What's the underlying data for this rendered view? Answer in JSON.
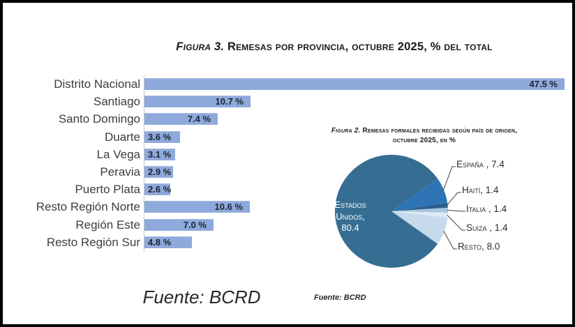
{
  "figure3": {
    "title_italic": "Figura 3.",
    "title_rest": " Remesas por provincia, octubre 2025, % del total",
    "source": "Fuente: BCRD"
  },
  "figure2": {
    "title_italic": "Figura 2.",
    "title_rest": " Remesas formales recibidas según país de origen,",
    "title_line2": "octubre 2025, en %",
    "source": "Fuente: BCRD"
  },
  "chart_data": [
    {
      "type": "bar",
      "orientation": "horizontal",
      "title": "Figura 3. Remesas por provincia, octubre 2025, % del total",
      "categories": [
        "Distrito Nacional",
        "Santiago",
        "Santo Domingo",
        "Duarte",
        "La Vega",
        "Peravia",
        "Puerto Plata",
        "Resto Región Norte",
        "Región Este",
        "Resto Región Sur"
      ],
      "values": [
        47.5,
        10.7,
        7.4,
        3.6,
        3.1,
        2.9,
        2.6,
        10.6,
        7.0,
        4.8
      ],
      "value_labels": [
        "47.5 %",
        "10.7 %",
        "7.4 %",
        "3.6 %",
        "3.1 %",
        "2.9 %",
        "2.6 %",
        "10.6 %",
        "7.0 %",
        "4.8 %"
      ],
      "unit": "%",
      "bar_color": "#8EA9DB",
      "grid": false,
      "xlabel": "",
      "ylabel": "",
      "source": "Fuente: BCRD"
    },
    {
      "type": "pie",
      "title": "Figura 2. Remesas formales recibidas según país de origen, octubre 2025, en %",
      "slices": [
        {
          "name": "Estados Unidos",
          "value": 80.4,
          "color": "#366E93",
          "display_lines": [
            "Estados",
            "Unidos,",
            "80.4"
          ]
        },
        {
          "name": "España",
          "value": 7.4,
          "color": "#2E74B5",
          "label": "España , 7.4"
        },
        {
          "name": "Haití",
          "value": 1.4,
          "color": "#2D5F8D",
          "label": "Haití, 1.4"
        },
        {
          "name": "Italia",
          "value": 1.4,
          "color": "#A6C5E0",
          "label": "Italia , 1.4"
        },
        {
          "name": "Suiza",
          "value": 1.4,
          "color": "#DDE9F5",
          "label": "Suiza , 1.4"
        },
        {
          "name": "Resto",
          "value": 8.0,
          "color": "#C7D9ED",
          "label": "Resto, 8.0"
        }
      ],
      "start_angle_deg": 54.7,
      "label_position": "outside-right",
      "legend": "none",
      "source": "Fuente: BCRD"
    }
  ]
}
